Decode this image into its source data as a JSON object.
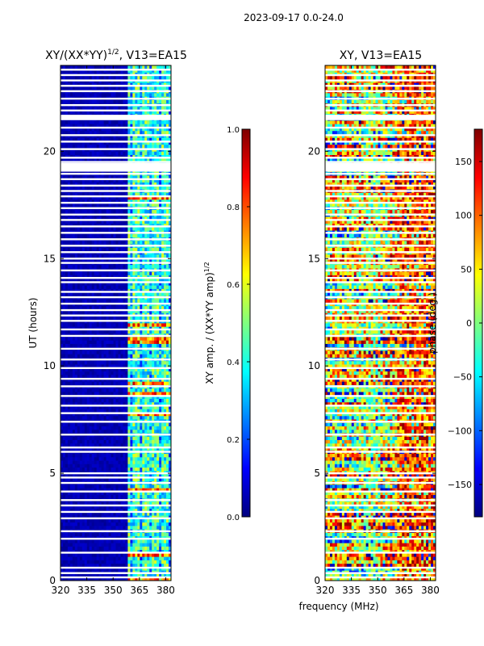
{
  "figure": {
    "suptitle": "2023-09-17 0.0-24.0",
    "xlabel": "frequency (MHz)"
  },
  "colors": {
    "jet": [
      "#00007f",
      "#0000ff",
      "#007fff",
      "#00ffff",
      "#7fff7f",
      "#ffff00",
      "#ff7f00",
      "#ff0000",
      "#7f0000"
    ],
    "gap": "#ffffff",
    "frame": "#000000"
  },
  "chart_data": [
    {
      "type": "heatmap",
      "title": "XY/(XX*YY)^{1/2}, V13=EA15",
      "title_main": "XY/(XX*YY)",
      "title_sup": "1/2",
      "title_rest": ", V13=EA15",
      "xlabel": "frequency (MHz)",
      "ylabel": "UT (hours)",
      "xlim": [
        320,
        383
      ],
      "ylim": [
        0,
        24
      ],
      "xticks": [
        320,
        335,
        350,
        365,
        380
      ],
      "yticks": [
        0,
        5,
        10,
        15,
        20
      ],
      "pattern": "amplitude",
      "bright_band_mhz": [
        359,
        383
      ],
      "colorbar": {
        "label_main": "XY amp. / (XX*YY amp)",
        "label_sup": "1/2",
        "range": [
          0.0,
          1.0
        ],
        "ticks": [
          "0.0",
          "0.2",
          "0.4",
          "0.6",
          "0.8",
          "1.0"
        ]
      }
    },
    {
      "type": "heatmap",
      "title": "XY, V13=EA15",
      "xlabel": "frequency (MHz)",
      "ylabel": "",
      "xlim": [
        320,
        383
      ],
      "ylim": [
        0,
        24
      ],
      "xticks": [
        320,
        335,
        350,
        365,
        380
      ],
      "yticks": [
        0,
        5,
        10,
        15,
        20
      ],
      "pattern": "phase",
      "colorbar": {
        "label_main": "phase (deg.)",
        "range": [
          -180,
          180
        ],
        "ticks": [
          "−150",
          "−100",
          "−50",
          "0",
          "50",
          "100",
          "150"
        ]
      }
    }
  ],
  "flagged_hours": [
    0.15,
    0.35,
    0.6,
    1.3,
    1.95,
    2.3,
    2.9,
    3.2,
    3.5,
    3.75,
    4.15,
    4.55,
    4.8,
    5.0,
    6.0,
    6.2,
    6.8,
    7.4,
    7.8,
    8.15,
    8.6,
    9.05,
    9.4,
    9.9,
    10.3,
    10.8,
    11.4,
    11.7,
    12.1,
    12.35,
    12.6,
    12.9,
    13.2,
    13.45,
    13.9,
    14.1,
    14.45,
    14.8,
    15.0,
    15.3,
    15.6,
    15.9,
    16.2,
    16.5,
    16.8,
    17.05,
    17.35,
    17.6,
    17.9,
    18.15,
    18.4,
    18.7,
    18.95,
    19.3,
    19.5,
    19.7,
    20.1,
    20.45,
    20.75,
    21.1,
    21.6,
    21.9,
    22.15,
    22.45,
    22.8,
    23.05,
    23.3,
    23.55,
    23.8
  ],
  "flagged_blocks": [
    [
      19.05,
      19.45
    ],
    [
      21.45,
      21.7
    ]
  ]
}
